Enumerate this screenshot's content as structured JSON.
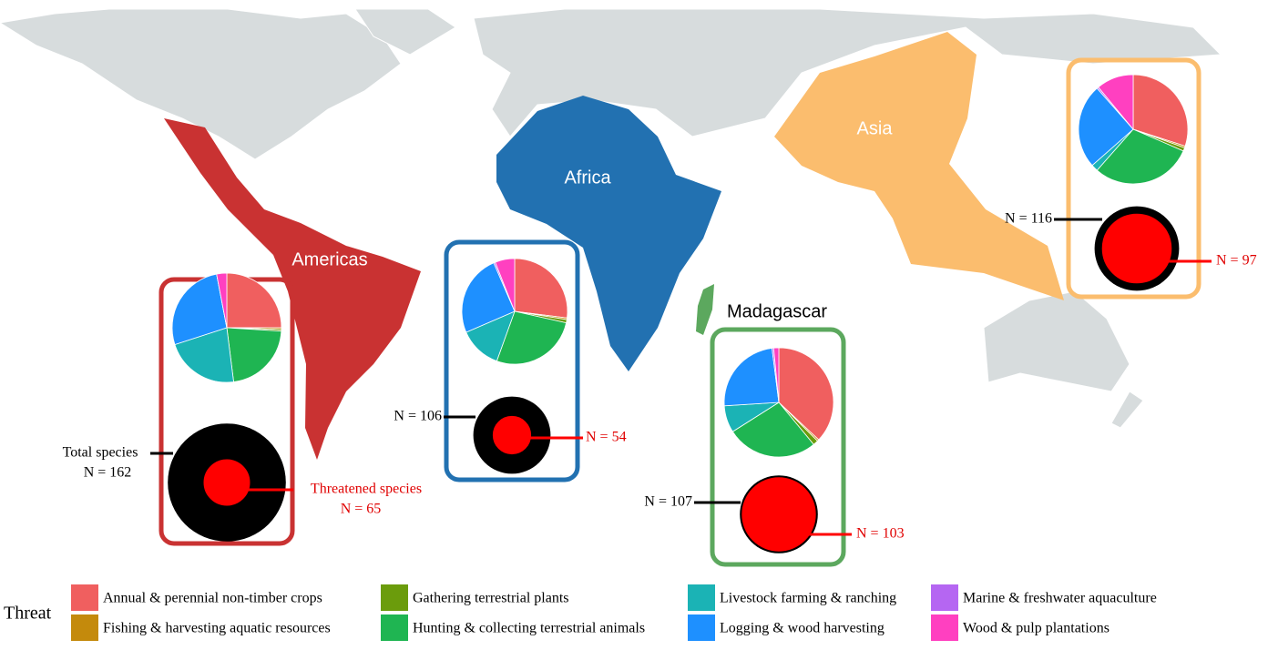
{
  "legend": {
    "title": "Threat",
    "categories": [
      {
        "name": "Annual & perennial non-timber crops",
        "color": "#f05f5f"
      },
      {
        "name": "Fishing & harvesting aquatic resources",
        "color": "#c48a0c"
      },
      {
        "name": "Gathering terrestrial plants",
        "color": "#6b9c0c"
      },
      {
        "name": "Hunting & collecting terrestrial animals",
        "color": "#1fb552"
      },
      {
        "name": "Livestock farming & ranching",
        "color": "#1bb3b5"
      },
      {
        "name": "Logging & wood harvesting",
        "color": "#1e90ff"
      },
      {
        "name": "Marine & freshwater aquaculture",
        "color": "#b566f2"
      },
      {
        "name": "Wood & pulp plantations",
        "color": "#ff40c0"
      }
    ]
  },
  "annotations": {
    "total": "Total species",
    "threatened": "Threatened species"
  },
  "regions": [
    {
      "name": "Americas",
      "color": "#c93232",
      "threats": [
        25,
        0.5,
        0.5,
        22,
        22,
        27,
        0,
        3
      ],
      "total": {
        "value": 162,
        "label": "N = 162"
      },
      "threatened": {
        "value": 65,
        "label": "N = 65"
      }
    },
    {
      "name": "Africa",
      "color": "#2271b1",
      "threats": [
        27,
        0.5,
        1,
        27,
        13,
        25,
        0.5,
        6
      ],
      "total": {
        "value": 106,
        "label": "N = 106"
      },
      "threatened": {
        "value": 54,
        "label": "N = 54"
      }
    },
    {
      "name": "Madagascar",
      "color": "#5ca85e",
      "threats": [
        37,
        0.5,
        1.5,
        27,
        8,
        24,
        0.5,
        1.5
      ],
      "total": {
        "value": 107,
        "label": "N = 107"
      },
      "threatened": {
        "value": 103,
        "label": "N = 103"
      }
    },
    {
      "name": "Asia",
      "color": "#fbbd6e",
      "threats": [
        30,
        0.5,
        1,
        30,
        2,
        25,
        0.5,
        11
      ],
      "total": {
        "value": 116,
        "label": "N = 116"
      },
      "threatened": {
        "value": 97,
        "label": "N = 97"
      }
    }
  ]
}
